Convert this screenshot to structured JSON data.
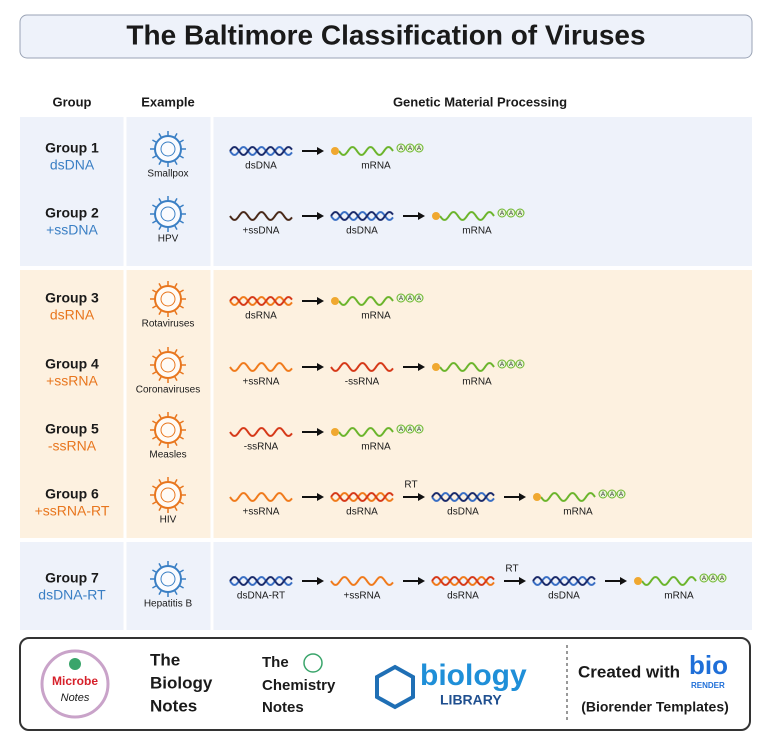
{
  "title": "The Baltimore Classification of Viruses",
  "headers": [
    "Group",
    "Example",
    "Genetic Material Processing"
  ],
  "sections": [
    {
      "background": "#eef2fa",
      "accent": "#3a7fc4",
      "groups": [
        {
          "group": "Group 1",
          "type": "dsDNA",
          "example": "Smallpox",
          "steps": [
            {
              "label": "dsDNA",
              "colors": [
                "#3a6fc4",
                "#1c2c6b"
              ]
            },
            {
              "label": "mRNA",
              "colors": [
                "#6cb52d"
              ],
              "tail": [
                "A",
                "A",
                "A"
              ]
            }
          ]
        },
        {
          "group": "Group 2",
          "type": "+ssDNA",
          "example": "HPV",
          "steps": [
            {
              "label": "+ssDNA",
              "colors": [
                "#4a2a1a"
              ]
            },
            {
              "label": "dsDNA",
              "colors": [
                "#3a6fc4",
                "#1c2c6b"
              ]
            },
            {
              "label": "mRNA",
              "colors": [
                "#6cb52d"
              ],
              "tail": [
                "A",
                "A",
                "A"
              ]
            }
          ]
        }
      ]
    },
    {
      "background": "#fdf1e0",
      "accent": "#e8761e",
      "groups": [
        {
          "group": "Group 3",
          "type": "dsRNA",
          "example": "Rotaviruses",
          "steps": [
            {
              "label": "dsRNA",
              "colors": [
                "#f07b1d",
                "#d63a1a"
              ]
            },
            {
              "label": "mRNA",
              "colors": [
                "#6cb52d"
              ],
              "tail": [
                "A",
                "A",
                "A"
              ]
            }
          ]
        },
        {
          "group": "Group 4",
          "type": "+ssRNA",
          "example": "Coronaviruses",
          "steps": [
            {
              "label": "+ssRNA",
              "colors": [
                "#f07b1d"
              ]
            },
            {
              "label": "-ssRNA",
              "colors": [
                "#d63a1a"
              ]
            },
            {
              "label": "mRNA",
              "colors": [
                "#6cb52d"
              ],
              "tail": [
                "A",
                "A",
                "A"
              ]
            }
          ]
        },
        {
          "group": "Group 5",
          "type": "-ssRNA",
          "example": "Measles",
          "steps": [
            {
              "label": "-ssRNA",
              "colors": [
                "#d63a1a"
              ]
            },
            {
              "label": "mRNA",
              "colors": [
                "#6cb52d"
              ],
              "tail": [
                "A",
                "A",
                "A"
              ]
            }
          ]
        },
        {
          "group": "Group 6",
          "type": "+ssRNA-RT",
          "example": "HIV",
          "steps": [
            {
              "label": "+ssRNA",
              "colors": [
                "#f07b1d"
              ]
            },
            {
              "label": "dsRNA",
              "colors": [
                "#f07b1d",
                "#d63a1a"
              ],
              "next_arrow": "RT"
            },
            {
              "label": "dsDNA",
              "colors": [
                "#3a6fc4",
                "#1c2c6b"
              ]
            },
            {
              "label": "mRNA",
              "colors": [
                "#6cb52d"
              ],
              "tail": [
                "A",
                "A",
                "A"
              ]
            }
          ]
        }
      ]
    },
    {
      "background": "#eef2fa",
      "accent": "#3a7fc4",
      "groups": [
        {
          "group": "Group 7",
          "type": "dsDNA-RT",
          "example": "Hepatitis B",
          "steps": [
            {
              "label": "dsDNA-RT",
              "colors": [
                "#3a6fc4",
                "#1c2c6b"
              ]
            },
            {
              "label": "+ssRNA",
              "colors": [
                "#f07b1d"
              ]
            },
            {
              "label": "dsRNA",
              "colors": [
                "#f07b1d",
                "#d63a1a"
              ],
              "next_arrow": "RT"
            },
            {
              "label": "dsDNA",
              "colors": [
                "#3a6fc4",
                "#1c2c6b"
              ]
            },
            {
              "label": "mRNA",
              "colors": [
                "#6cb52d"
              ],
              "tail": [
                "A",
                "A",
                "A"
              ]
            }
          ]
        }
      ]
    }
  ],
  "footer": {
    "logos": [
      {
        "lines": [
          "Microbe",
          "Notes"
        ]
      },
      {
        "lines": [
          "The",
          "Biology",
          "Notes"
        ]
      },
      {
        "lines": [
          "The",
          "Chemistry",
          "Notes"
        ]
      },
      {
        "lines": [
          "biology",
          "LIBRARY"
        ]
      }
    ],
    "created_with": "Created with",
    "brand": [
      "bio",
      "RENDER"
    ],
    "templates": "(Biorender Templates)"
  }
}
